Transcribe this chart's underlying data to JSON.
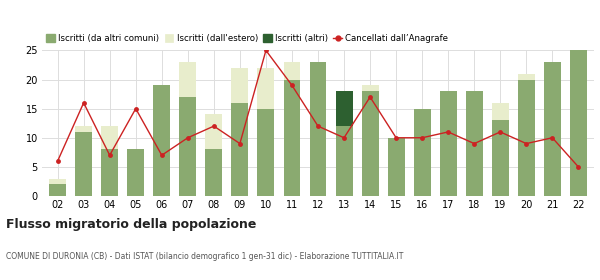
{
  "years": [
    "02",
    "03",
    "04",
    "05",
    "06",
    "07",
    "08",
    "09",
    "10",
    "11",
    "12",
    "13",
    "14",
    "15",
    "16",
    "17",
    "18",
    "19",
    "20",
    "21",
    "22"
  ],
  "iscritti_comuni": [
    2,
    11,
    8,
    8,
    19,
    17,
    8,
    16,
    15,
    20,
    23,
    12,
    18,
    10,
    15,
    18,
    18,
    13,
    20,
    23,
    25
  ],
  "iscritti_estero": [
    1,
    1,
    4,
    0,
    0,
    6,
    6,
    6,
    7,
    3,
    0,
    0,
    1,
    0,
    0,
    0,
    0,
    3,
    1,
    0,
    0
  ],
  "iscritti_altri": [
    0,
    0,
    0,
    0,
    0,
    0,
    0,
    0,
    0,
    0,
    0,
    6,
    0,
    0,
    0,
    0,
    0,
    0,
    0,
    0,
    0
  ],
  "cancellati": [
    6,
    16,
    7,
    15,
    7,
    10,
    12,
    9,
    25,
    19,
    12,
    10,
    17,
    10,
    10,
    11,
    9,
    11,
    9,
    10,
    5
  ],
  "color_comuni": "#8aaa70",
  "color_estero": "#e8edcc",
  "color_altri": "#2d6030",
  "color_cancellati": "#cc2222",
  "color_grid": "#dddddd",
  "color_bg": "#ffffff",
  "ylim": [
    0,
    25
  ],
  "yticks": [
    0,
    5,
    10,
    15,
    20,
    25
  ],
  "title": "Flusso migratorio della popolazione",
  "subtitle": "COMUNE DI DURONIA (CB) - Dati ISTAT (bilancio demografico 1 gen-31 dic) - Elaborazione TUTTITALIA.IT",
  "legend_labels": [
    "Iscritti (da altri comuni)",
    "Iscritti (dall'estero)",
    "Iscritti (altri)",
    "Cancellati dall’Anagrafe"
  ]
}
